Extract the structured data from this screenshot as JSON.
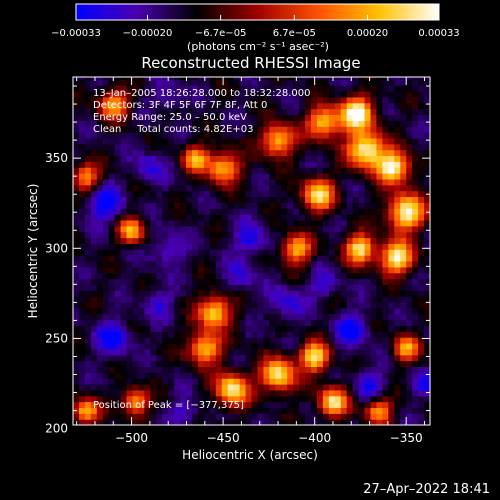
{
  "chart_data": {
    "type": "heatmap",
    "title": "Reconstructed RHESSI Image",
    "xlabel": "Heliocentric X (arcsec)",
    "ylabel": "Heliocentric Y (arcsec)",
    "xlim": [
      -532,
      -337
    ],
    "ylim": [
      202,
      395
    ],
    "x_ticks": [
      -500,
      -450,
      -400,
      -350
    ],
    "x_tick_labels": [
      "−500",
      "−450",
      "−400",
      "−350"
    ],
    "y_ticks": [
      200,
      250,
      300,
      350
    ],
    "y_tick_labels": [
      "200",
      "250",
      "300",
      "350"
    ],
    "colorbar": {
      "range": [
        -0.00033,
        0.00033
      ],
      "ticks": [
        -0.00033,
        -0.0002,
        -6.7e-05,
        6.7e-05,
        0.0002,
        0.00033
      ],
      "tick_labels": [
        "−0.00033",
        "−0.00020",
        "−6.7e−05",
        "6.7e−05",
        "0.00020",
        "0.00033"
      ],
      "units_label": "(photons cm⁻² s⁻¹ asec⁻²)",
      "colors": [
        "#0000ff",
        "#4a00b0",
        "#000000",
        "#a00000",
        "#ff5000",
        "#ffc000",
        "#ffffff"
      ]
    },
    "annotations": [
      "13–Jan–2005 18:26:28.000 to 18:32:28.000",
      "Detectors: 3F 4F 5F 6F 7F 8F, Att 0",
      "Energy Range: 25.0 – 50.0 keV",
      "Clean     Total counts: 4.82E+03"
    ],
    "peak_label": "Position of Peak = [−377,375]",
    "peak": [
      -377,
      375
    ],
    "hot_regions": [
      {
        "x": -377,
        "y": 375,
        "level": 0.95,
        "radius": 9
      },
      {
        "x": -372,
        "y": 355,
        "level": 0.9,
        "radius": 10
      },
      {
        "x": -357,
        "y": 345,
        "level": 0.85,
        "radius": 9
      },
      {
        "x": -350,
        "y": 320,
        "level": 0.85,
        "radius": 10
      },
      {
        "x": -355,
        "y": 295,
        "level": 0.8,
        "radius": 9
      },
      {
        "x": -375,
        "y": 300,
        "level": 0.75,
        "radius": 8
      },
      {
        "x": -398,
        "y": 330,
        "level": 0.65,
        "radius": 9
      },
      {
        "x": -395,
        "y": 370,
        "level": 0.6,
        "radius": 9
      },
      {
        "x": -420,
        "y": 360,
        "level": 0.6,
        "radius": 9
      },
      {
        "x": -410,
        "y": 300,
        "level": 0.55,
        "radius": 8
      },
      {
        "x": -450,
        "y": 345,
        "level": 0.55,
        "radius": 9
      },
      {
        "x": -465,
        "y": 350,
        "level": 0.45,
        "radius": 7
      },
      {
        "x": -500,
        "y": 310,
        "level": 0.5,
        "radius": 7
      },
      {
        "x": -525,
        "y": 340,
        "level": 0.45,
        "radius": 7
      },
      {
        "x": -510,
        "y": 380,
        "level": 0.5,
        "radius": 8
      },
      {
        "x": -455,
        "y": 265,
        "level": 0.65,
        "radius": 9
      },
      {
        "x": -460,
        "y": 245,
        "level": 0.6,
        "radius": 9
      },
      {
        "x": -445,
        "y": 222,
        "level": 0.8,
        "radius": 9
      },
      {
        "x": -420,
        "y": 230,
        "level": 0.8,
        "radius": 9
      },
      {
        "x": -400,
        "y": 240,
        "level": 0.75,
        "radius": 8
      },
      {
        "x": -390,
        "y": 215,
        "level": 0.7,
        "radius": 8
      },
      {
        "x": -498,
        "y": 215,
        "level": 0.55,
        "radius": 7
      },
      {
        "x": -525,
        "y": 210,
        "level": 0.55,
        "radius": 7
      },
      {
        "x": -350,
        "y": 245,
        "level": 0.45,
        "radius": 7
      },
      {
        "x": -365,
        "y": 210,
        "level": 0.45,
        "radius": 7
      }
    ],
    "cold_regions": [
      {
        "x": -515,
        "y": 325,
        "level": 0.9,
        "radius": 9
      },
      {
        "x": -490,
        "y": 345,
        "level": 0.6,
        "radius": 8
      },
      {
        "x": -480,
        "y": 300,
        "level": 0.55,
        "radius": 9
      },
      {
        "x": -510,
        "y": 250,
        "level": 0.85,
        "radius": 9
      },
      {
        "x": -485,
        "y": 270,
        "level": 0.55,
        "radius": 8
      },
      {
        "x": -435,
        "y": 305,
        "level": 0.7,
        "radius": 9
      },
      {
        "x": -440,
        "y": 285,
        "level": 0.55,
        "radius": 8
      },
      {
        "x": -415,
        "y": 270,
        "level": 0.6,
        "radius": 9
      },
      {
        "x": -380,
        "y": 255,
        "level": 0.85,
        "radius": 9
      },
      {
        "x": -395,
        "y": 280,
        "level": 0.5,
        "radius": 8
      },
      {
        "x": -370,
        "y": 225,
        "level": 0.65,
        "radius": 8
      },
      {
        "x": -340,
        "y": 225,
        "level": 0.55,
        "radius": 7
      },
      {
        "x": -470,
        "y": 210,
        "level": 0.5,
        "radius": 8
      },
      {
        "x": -480,
        "y": 385,
        "level": 0.45,
        "radius": 8
      }
    ]
  },
  "footer": {
    "date": "27–Apr–2022 18:41"
  }
}
